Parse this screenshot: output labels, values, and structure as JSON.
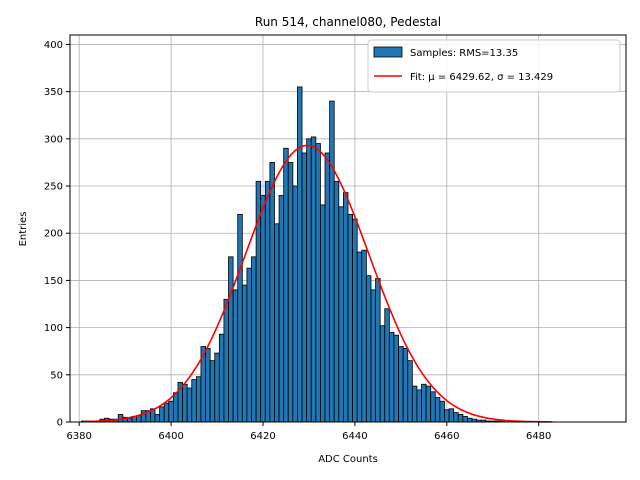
{
  "chart_data": {
    "type": "bar",
    "title": "Run 514, channel080, Pedestal",
    "xlabel": "ADC Counts",
    "ylabel": "Entries",
    "xlim": [
      6378,
      6499
    ],
    "ylim": [
      0,
      410
    ],
    "xticks": [
      6380,
      6400,
      6420,
      6440,
      6460,
      6480
    ],
    "yticks": [
      0,
      50,
      100,
      150,
      200,
      250,
      300,
      350,
      400
    ],
    "grid": true,
    "legend_position": "top-right",
    "colors": {
      "bars": "#1f77b4",
      "bar_edge": "#000000",
      "fit": "#ff0000"
    },
    "series": [
      {
        "name": "Samples: RMS=13.35",
        "kind": "histogram",
        "bin_width": 1,
        "x": [
          6381,
          6382,
          6383,
          6384,
          6385,
          6386,
          6387,
          6388,
          6389,
          6390,
          6391,
          6392,
          6393,
          6394,
          6395,
          6396,
          6397,
          6398,
          6399,
          6400,
          6401,
          6402,
          6403,
          6404,
          6405,
          6406,
          6407,
          6408,
          6409,
          6410,
          6411,
          6412,
          6413,
          6414,
          6415,
          6416,
          6417,
          6418,
          6419,
          6420,
          6421,
          6422,
          6423,
          6424,
          6425,
          6426,
          6427,
          6428,
          6429,
          6430,
          6431,
          6432,
          6433,
          6434,
          6435,
          6436,
          6437,
          6438,
          6439,
          6440,
          6441,
          6442,
          6443,
          6444,
          6445,
          6446,
          6447,
          6448,
          6449,
          6450,
          6451,
          6452,
          6453,
          6454,
          6455,
          6456,
          6457,
          6458,
          6459,
          6460,
          6461,
          6462,
          6463,
          6464,
          6465,
          6466,
          6467,
          6468,
          6469,
          6470,
          6471,
          6472,
          6473,
          6474,
          6475,
          6476,
          6477,
          6478,
          6479,
          6480
        ],
        "values": [
          1,
          1,
          1,
          1,
          3,
          4,
          3,
          3,
          8,
          5,
          4,
          6,
          7,
          12,
          12,
          14,
          8,
          16,
          20,
          22,
          31,
          42,
          40,
          36,
          45,
          48,
          80,
          78,
          65,
          73,
          93,
          130,
          175,
          140,
          220,
          145,
          163,
          175,
          255,
          240,
          255,
          275,
          210,
          240,
          290,
          275,
          250,
          355,
          285,
          300,
          302,
          295,
          230,
          285,
          340,
          255,
          228,
          243,
          220,
          215,
          180,
          182,
          155,
          140,
          152,
          102,
          120,
          95,
          92,
          80,
          78,
          65,
          38,
          34,
          40,
          38,
          32,
          26,
          22,
          13,
          14,
          10,
          8,
          6,
          4,
          3,
          2,
          2,
          1,
          1,
          1,
          1,
          0,
          0,
          0,
          0,
          0,
          0,
          0,
          0
        ]
      },
      {
        "name": "Fit: μ = 6429.62, σ = 13.429",
        "kind": "gaussian",
        "mu": 6429.62,
        "sigma": 13.429,
        "amplitude": 293,
        "x_range": [
          6381,
          6483
        ]
      }
    ]
  }
}
